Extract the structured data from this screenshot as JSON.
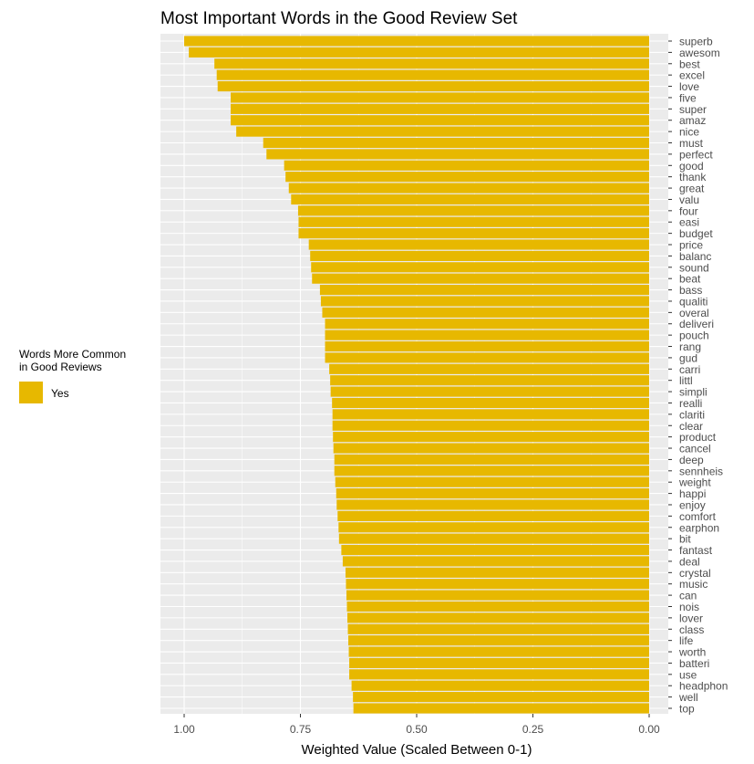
{
  "chart_data": {
    "type": "bar",
    "orientation": "horizontal",
    "title": "Most Important Words in the Good Review Set",
    "xlabel": "Weighted Value (Scaled Between 0-1)",
    "ylabel": "",
    "xlim": [
      1.0,
      0.0
    ],
    "x_reversed": true,
    "x_ticks": [
      "1.00",
      "0.75",
      "0.50",
      "0.25",
      "0.00"
    ],
    "x_tick_values": [
      1.0,
      0.75,
      0.5,
      0.25,
      0.0
    ],
    "y_axis_position": "right",
    "grid": true,
    "bar_color": "#E7B800",
    "panel_background": "#EBEBEB",
    "legend": {
      "position": "left",
      "title_lines": [
        "Words More Common",
        "in Good Reviews"
      ],
      "entries": [
        {
          "label": "Yes",
          "color": "#E7B800"
        }
      ]
    },
    "categories": [
      "superb",
      "awesom",
      "best",
      "excel",
      "love",
      "five",
      "super",
      "amaz",
      "nice",
      "must",
      "perfect",
      "good",
      "thank",
      "great",
      "valu",
      "four",
      "easi",
      "budget",
      "price",
      "balanc",
      "sound",
      "beat",
      "bass",
      "qualiti",
      "overal",
      "deliveri",
      "pouch",
      "rang",
      "gud",
      "carri",
      "littl",
      "simpli",
      "realli",
      "clariti",
      "clear",
      "product",
      "cancel",
      "deep",
      "sennheis",
      "weight",
      "happi",
      "enjoy",
      "comfort",
      "earphon",
      "bit",
      "fantast",
      "deal",
      "crystal",
      "music",
      "can",
      "nois",
      "lover",
      "class",
      "life",
      "worth",
      "batteri",
      "use",
      "headphon",
      "well",
      "top"
    ],
    "values": [
      1.0,
      0.99,
      0.935,
      0.93,
      0.928,
      0.9,
      0.9,
      0.9,
      0.888,
      0.83,
      0.823,
      0.785,
      0.782,
      0.775,
      0.77,
      0.755,
      0.754,
      0.754,
      0.732,
      0.729,
      0.727,
      0.725,
      0.708,
      0.706,
      0.703,
      0.697,
      0.697,
      0.697,
      0.697,
      0.688,
      0.686,
      0.685,
      0.682,
      0.681,
      0.681,
      0.68,
      0.679,
      0.677,
      0.677,
      0.675,
      0.673,
      0.672,
      0.67,
      0.668,
      0.667,
      0.662,
      0.659,
      0.653,
      0.652,
      0.651,
      0.65,
      0.649,
      0.648,
      0.647,
      0.646,
      0.645,
      0.645,
      0.64,
      0.637,
      0.636
    ]
  }
}
